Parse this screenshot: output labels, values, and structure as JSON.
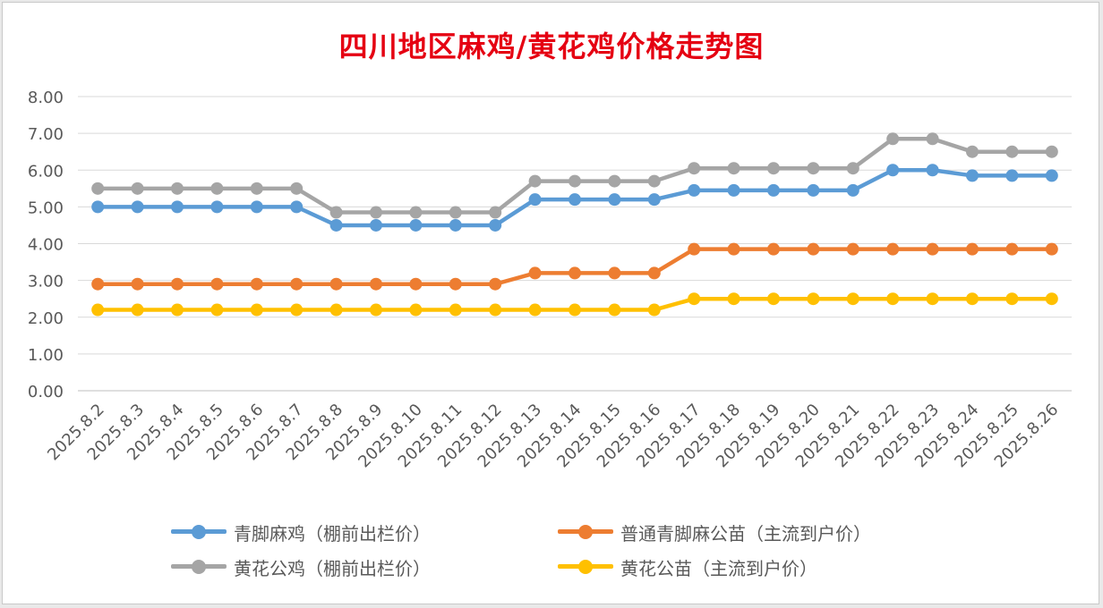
{
  "chart_data": {
    "type": "line",
    "title": "四川地区麻鸡/黄花鸡价格走势图",
    "xlabel": "",
    "ylabel": "",
    "ylim": [
      0,
      8
    ],
    "yticks": [
      "0.00",
      "1.00",
      "2.00",
      "3.00",
      "4.00",
      "5.00",
      "6.00",
      "7.00",
      "8.00"
    ],
    "grid": true,
    "legend_position": "bottom",
    "categories": [
      "2025.8.2",
      "2025.8.3",
      "2025.8.4",
      "2025.8.5",
      "2025.8.6",
      "2025.8.7",
      "2025.8.8",
      "2025.8.9",
      "2025.8.10",
      "2025.8.11",
      "2025.8.12",
      "2025.8.13",
      "2025.8.14",
      "2025.8.15",
      "2025.8.16",
      "2025.8.17",
      "2025.8.18",
      "2025.8.19",
      "2025.8.20",
      "2025.8.21",
      "2025.8.22",
      "2025.8.23",
      "2025.8.24",
      "2025.8.25",
      "2025.8.26"
    ],
    "series": [
      {
        "name": "青脚麻鸡（棚前出栏价）",
        "color": "#5b9bd5",
        "values": [
          5.0,
          5.0,
          5.0,
          5.0,
          5.0,
          5.0,
          4.5,
          4.5,
          4.5,
          4.5,
          4.5,
          5.2,
          5.2,
          5.2,
          5.2,
          5.45,
          5.45,
          5.45,
          5.45,
          5.45,
          6.0,
          6.0,
          5.85,
          5.85,
          5.85
        ]
      },
      {
        "name": "普通青脚麻公苗（主流到户价）",
        "color": "#ed7d31",
        "values": [
          2.9,
          2.9,
          2.9,
          2.9,
          2.9,
          2.9,
          2.9,
          2.9,
          2.9,
          2.9,
          2.9,
          3.2,
          3.2,
          3.2,
          3.2,
          3.85,
          3.85,
          3.85,
          3.85,
          3.85,
          3.85,
          3.85,
          3.85,
          3.85,
          3.85
        ]
      },
      {
        "name": "黄花公鸡（棚前出栏价）",
        "color": "#a5a5a5",
        "values": [
          5.5,
          5.5,
          5.5,
          5.5,
          5.5,
          5.5,
          4.85,
          4.85,
          4.85,
          4.85,
          4.85,
          5.7,
          5.7,
          5.7,
          5.7,
          6.05,
          6.05,
          6.05,
          6.05,
          6.05,
          6.85,
          6.85,
          6.5,
          6.5,
          6.5
        ]
      },
      {
        "name": "黄花公苗（主流到户价）",
        "color": "#ffc000",
        "values": [
          2.2,
          2.2,
          2.2,
          2.2,
          2.2,
          2.2,
          2.2,
          2.2,
          2.2,
          2.2,
          2.2,
          2.2,
          2.2,
          2.2,
          2.2,
          2.5,
          2.5,
          2.5,
          2.5,
          2.5,
          2.5,
          2.5,
          2.5,
          2.5,
          2.5
        ]
      }
    ]
  }
}
